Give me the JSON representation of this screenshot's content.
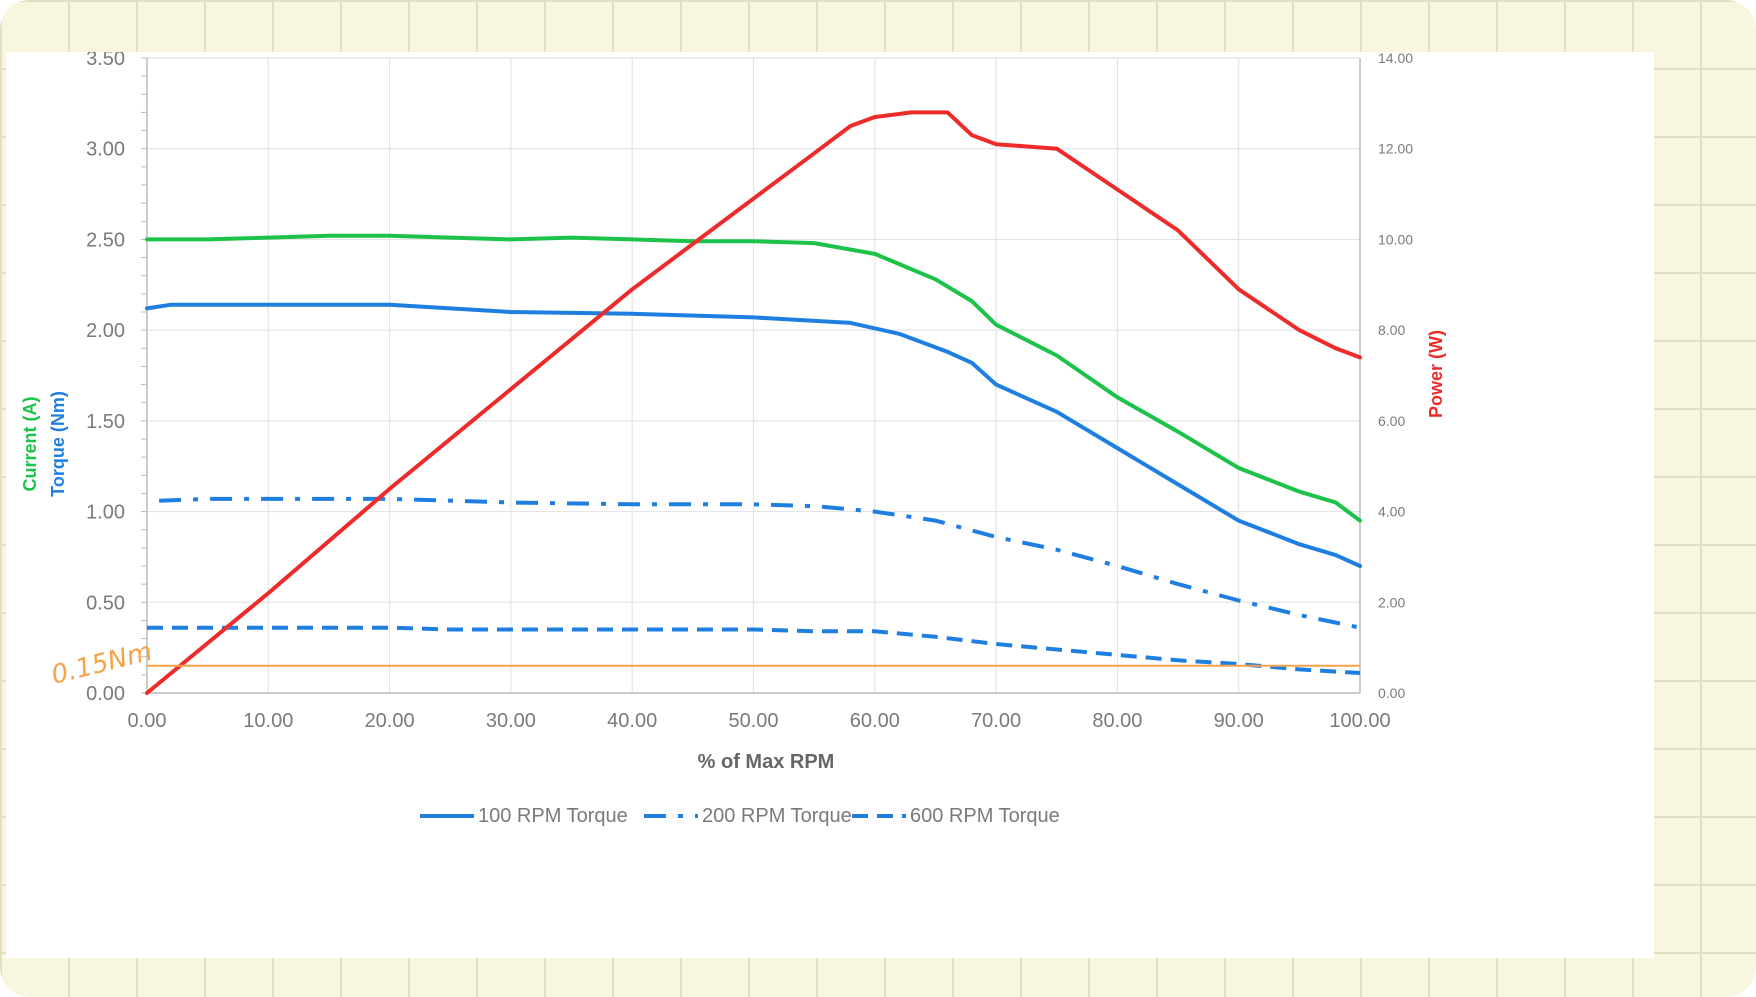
{
  "chart_data": {
    "type": "line",
    "title": "",
    "xlabel": "% of Max RPM",
    "ylabel_left": [
      "Current (A)",
      "Torque (Nm)"
    ],
    "ylabel_right": "Power (W)",
    "xlim": [
      0,
      100
    ],
    "ylim_left": [
      0,
      3.5
    ],
    "ylim_right": [
      0,
      14
    ],
    "x_ticks": [
      "0.00",
      "10.00",
      "20.00",
      "30.00",
      "40.00",
      "50.00",
      "60.00",
      "70.00",
      "80.00",
      "90.00",
      "100.00"
    ],
    "y_left_ticks": [
      "0.00",
      "0.50",
      "1.00",
      "1.50",
      "2.00",
      "2.50",
      "3.00",
      "3.50"
    ],
    "y_right_ticks": [
      "0.00",
      "2.00",
      "4.00",
      "6.00",
      "8.00",
      "10.00",
      "12.00",
      "14.00"
    ],
    "grid": true,
    "legend_position": "bottom",
    "series": [
      {
        "name": "100 RPM Torque",
        "axis": "left",
        "style": "solid",
        "color": "#1f7fe0",
        "x": [
          0,
          2,
          10,
          20,
          25,
          30,
          40,
          50,
          58,
          62,
          66,
          68,
          70,
          75,
          80,
          85,
          90,
          95,
          98,
          100
        ],
        "y": [
          2.12,
          2.14,
          2.14,
          2.14,
          2.12,
          2.1,
          2.09,
          2.07,
          2.04,
          1.98,
          1.88,
          1.82,
          1.7,
          1.55,
          1.35,
          1.15,
          0.95,
          0.82,
          0.76,
          0.7
        ]
      },
      {
        "name": "200 RPM Torque",
        "axis": "left",
        "style": "dash-dot",
        "color": "#1f7fe0",
        "x": [
          1,
          5,
          20,
          30,
          40,
          50,
          55,
          60,
          65,
          70,
          75,
          80,
          85,
          90,
          95,
          100
        ],
        "y": [
          1.06,
          1.07,
          1.07,
          1.05,
          1.04,
          1.04,
          1.03,
          1.0,
          0.95,
          0.86,
          0.79,
          0.7,
          0.6,
          0.51,
          0.43,
          0.36
        ]
      },
      {
        "name": "600 RPM Torque",
        "axis": "left",
        "style": "dashed",
        "color": "#1f7fe0",
        "x": [
          0,
          10,
          20,
          25,
          30,
          40,
          50,
          55,
          60,
          65,
          70,
          75,
          80,
          85,
          90,
          95,
          100
        ],
        "y": [
          0.36,
          0.36,
          0.36,
          0.35,
          0.35,
          0.35,
          0.35,
          0.34,
          0.34,
          0.31,
          0.27,
          0.24,
          0.21,
          0.18,
          0.16,
          0.13,
          0.11
        ]
      },
      {
        "name": "Current",
        "axis": "left",
        "style": "solid",
        "color": "#1dc24a",
        "x": [
          0,
          5,
          10,
          15,
          20,
          25,
          30,
          35,
          40,
          45,
          50,
          55,
          60,
          65,
          68,
          70,
          75,
          80,
          85,
          90,
          95,
          98,
          100
        ],
        "y": [
          2.5,
          2.5,
          2.51,
          2.52,
          2.52,
          2.51,
          2.5,
          2.51,
          2.5,
          2.49,
          2.49,
          2.48,
          2.42,
          2.28,
          2.16,
          2.03,
          1.86,
          1.63,
          1.44,
          1.24,
          1.11,
          1.05,
          0.95
        ]
      },
      {
        "name": "Power",
        "axis": "right",
        "style": "solid",
        "color": "#ee2b2b",
        "x": [
          0,
          10,
          20,
          30,
          40,
          50,
          55,
          58,
          60,
          63,
          66,
          68,
          70,
          75,
          80,
          85,
          90,
          95,
          98,
          100
        ],
        "y": [
          0,
          2.2,
          4.5,
          6.7,
          8.9,
          10.9,
          11.9,
          12.5,
          12.7,
          12.8,
          12.8,
          12.3,
          12.1,
          12.0,
          11.1,
          10.2,
          8.9,
          8.0,
          7.6,
          7.4
        ]
      }
    ],
    "reference_lines": [
      {
        "axis": "left",
        "y": 0.15,
        "color": "#f7a24a",
        "label": "0.15Nm"
      }
    ]
  }
}
